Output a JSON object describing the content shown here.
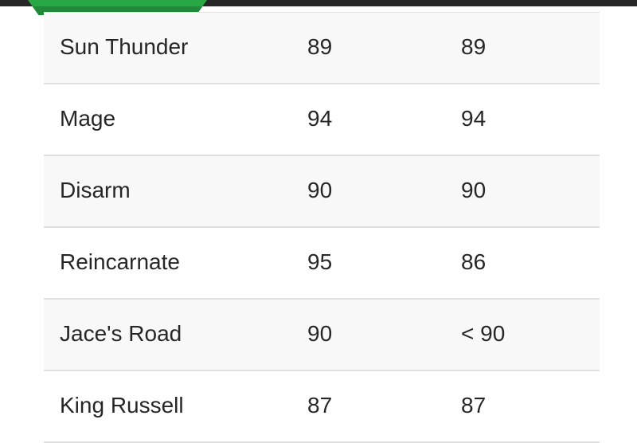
{
  "colors": {
    "accent": "#28a745",
    "topbar": "#262626"
  },
  "rows": [
    {
      "name": "Sun Thunder",
      "col2": "89",
      "col3": "89"
    },
    {
      "name": "Mage",
      "col2": "94",
      "col3": "94"
    },
    {
      "name": "Disarm",
      "col2": "90",
      "col3": "90"
    },
    {
      "name": "Reincarnate",
      "col2": "95",
      "col3": "86"
    },
    {
      "name": "Jace's Road",
      "col2": "90",
      "col3": "< 90"
    },
    {
      "name": "King Russell",
      "col2": "87",
      "col3": "87"
    }
  ]
}
